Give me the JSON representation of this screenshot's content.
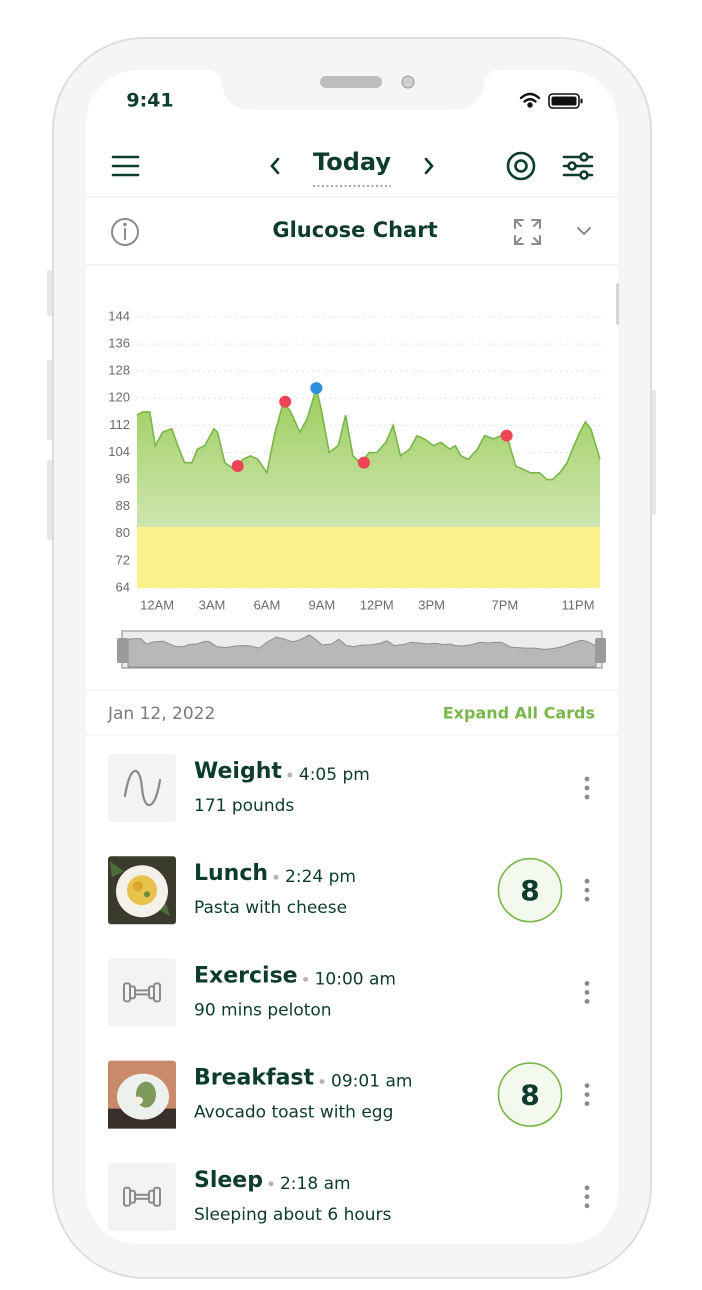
{
  "status_bar": {
    "time": "9:41"
  },
  "nav": {
    "title": "Today"
  },
  "chart_card": {
    "title": "Glucose Chart"
  },
  "chart_data": {
    "type": "area",
    "x": [
      -1.1,
      -0.8,
      -0.4,
      -0.1,
      0.3,
      0.8,
      1.2,
      1.5,
      1.9,
      2.2,
      2.6,
      3.1,
      3.3,
      3.7,
      4.2,
      4.7,
      5.1,
      5.5,
      6.0,
      6.4,
      6.9,
      7.3,
      7.8,
      8.2,
      8.7,
      9.0,
      9.4,
      9.9,
      10.3,
      10.7,
      11.1,
      11.6,
      12.0,
      12.5,
      12.9,
      13.3,
      13.8,
      14.2,
      14.6,
      15.1,
      15.5,
      16.0,
      16.3,
      16.6,
      17.0,
      17.5,
      17.9,
      18.4,
      18.8,
      19.1,
      19.6,
      20.0,
      20.4,
      20.9,
      21.3,
      21.6,
      22.0,
      22.4,
      22.7,
      23.1,
      23.4,
      23.7,
      24.2
    ],
    "values": [
      115,
      116,
      116,
      106,
      110,
      111,
      105,
      101,
      101,
      105,
      106,
      111,
      110,
      101,
      99,
      102,
      103,
      102,
      98,
      109,
      119,
      116,
      110,
      114,
      123,
      116,
      104,
      106,
      115,
      103,
      101,
      104,
      104,
      107,
      112,
      103,
      105,
      109,
      108,
      106,
      107,
      105,
      106,
      103,
      102,
      105,
      109,
      108,
      109,
      109,
      100,
      99,
      98,
      98,
      96,
      96,
      98,
      101,
      105,
      110,
      113,
      111,
      102
    ],
    "color": "#7ab648",
    "xlim": [
      -1.1,
      24.2
    ],
    "xticks": [
      {
        "value": 0,
        "label": "12AM"
      },
      {
        "value": 3,
        "label": "3AM"
      },
      {
        "value": 6,
        "label": "6AM"
      },
      {
        "value": 9,
        "label": "9AM"
      },
      {
        "value": 12,
        "label": "12PM"
      },
      {
        "value": 15,
        "label": "3PM"
      },
      {
        "value": 19,
        "label": "7PM"
      },
      {
        "value": 23,
        "label": "11PM"
      }
    ],
    "ylim": [
      64,
      144
    ],
    "yticks": [
      64,
      72,
      80,
      88,
      96,
      104,
      112,
      120,
      128,
      136,
      144
    ],
    "grid": true,
    "band": {
      "from": 64,
      "to": 82,
      "color": "#fbf08a"
    },
    "markers": {
      "x": [
        4.4,
        7.0,
        8.7,
        11.3,
        19.1
      ],
      "values": [
        100,
        119,
        123,
        101,
        109
      ],
      "colors": [
        "#ee4455",
        "#ee4455",
        "#2d8fe0",
        "#ee4455",
        "#ee4455"
      ]
    }
  },
  "list_header": {
    "date": "Jan 12, 2022",
    "action": "Expand All Cards"
  },
  "cards": [
    {
      "title": "Weight",
      "time": "4:05 pm",
      "detail": "171 pounds",
      "icon": "wave"
    },
    {
      "title": "Lunch",
      "time": "2:24 pm",
      "detail": "Pasta with cheese",
      "icon": "lunch-photo",
      "score": 8
    },
    {
      "title": "Exercise",
      "time": "10:00 am",
      "detail": "90 mins peloton",
      "icon": "dumbbell"
    },
    {
      "title": "Breakfast",
      "time": "09:01 am",
      "detail": "Avocado toast with egg",
      "icon": "breakfast-photo",
      "score": 8
    },
    {
      "title": "Sleep",
      "time": "2:18 am",
      "detail": "Sleeping about 6 hours",
      "icon": "dumbbell"
    }
  ]
}
